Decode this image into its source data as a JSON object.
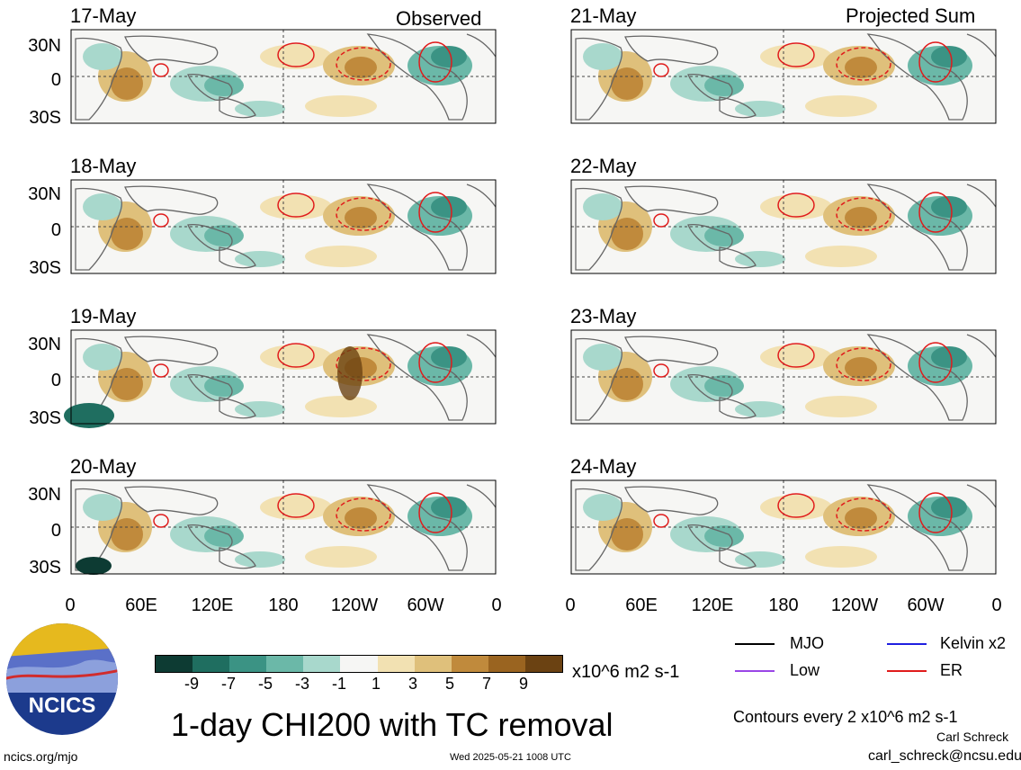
{
  "left_column": {
    "label": "Observed",
    "dates": [
      "17-May",
      "18-May",
      "19-May",
      "20-May"
    ]
  },
  "right_column": {
    "label": "Projected Sum",
    "dates": [
      "21-May",
      "22-May",
      "23-May",
      "24-May"
    ]
  },
  "lat_labels": [
    "30N",
    "0",
    "30S"
  ],
  "lon_labels": [
    "0",
    "60E",
    "120E",
    "180",
    "120W",
    "60W",
    "0"
  ],
  "colorbar": {
    "ticks": [
      "-9",
      "-7",
      "-5",
      "-3",
      "-1",
      "1",
      "3",
      "5",
      "7",
      "9"
    ],
    "units": "x10^6 m2 s-1",
    "colors": [
      "#0d3b33",
      "#1f6e60",
      "#3b9384",
      "#6bb8a8",
      "#a8d8cc",
      "#f6f6f4",
      "#f2e1b2",
      "#dfc07b",
      "#c08a3c",
      "#9a6420",
      "#6b4212"
    ]
  },
  "legend": {
    "items": [
      {
        "label": "MJO",
        "color": "#000000"
      },
      {
        "label": "Kelvin x2",
        "color": "#1f1fe0"
      },
      {
        "label": "Low",
        "color": "#9a46e6"
      },
      {
        "label": "ER",
        "color": "#e01c1c"
      }
    ],
    "contours_note": "Contours every 2 x10^6 m2 s-1",
    "author": "Carl Schreck",
    "email": "carl_schreck@ncsu.edu"
  },
  "title": "1-day CHI200 with TC removal",
  "footer": {
    "site": "ncics.org/mjo",
    "timestamp": "Wed 2025-05-21 1008 UTC"
  },
  "logo": {
    "text": "NCICS"
  }
}
